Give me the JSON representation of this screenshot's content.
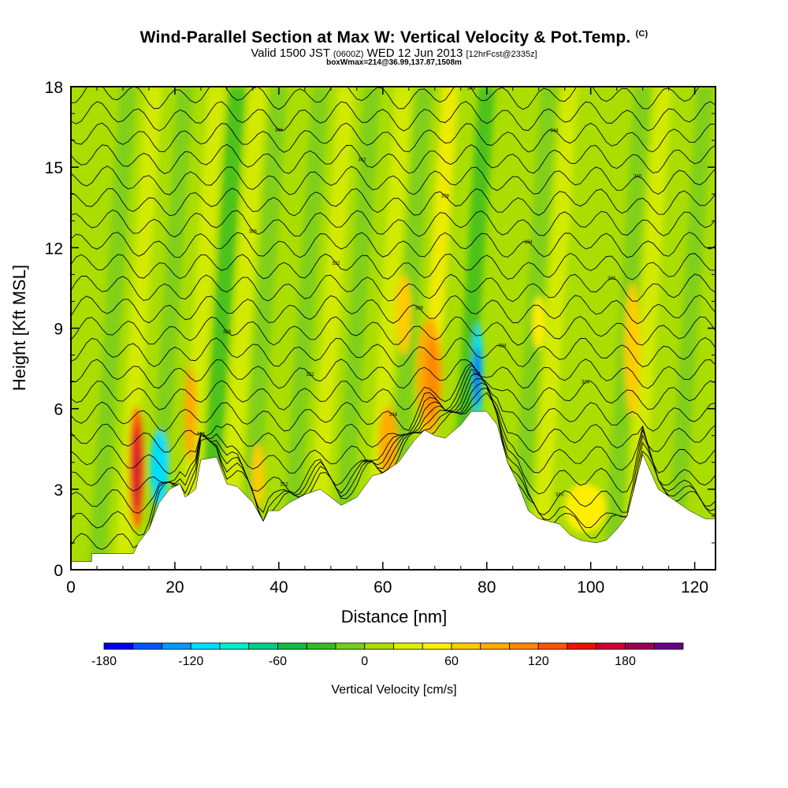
{
  "title": {
    "main": "Wind-Parallel Section at Max W: Vertical Velocity & Pot.Temp.",
    "copyright": "(C)",
    "valid_prefix": "Valid 1500 JST",
    "valid_utc": "(0600Z)",
    "valid_date": "WED 12 Jun 2013",
    "forecast": "[12hrFcst@2335z]",
    "box_info": "boxWmax=214@36.99,137.87,1508m"
  },
  "chart_data": {
    "type": "heatmap",
    "xlabel": "Distance [nm]",
    "ylabel": "Height [Kft MSL]",
    "xlim": [
      0,
      124
    ],
    "ylim": [
      0,
      18
    ],
    "x_ticks": [
      0,
      20,
      40,
      60,
      80,
      100,
      120
    ],
    "y_ticks": [
      0,
      3,
      6,
      9,
      12,
      15,
      18
    ],
    "colorbar": {
      "title": "Vertical Velocity [cm/s]",
      "tick_labels": [
        "-180",
        "-120",
        "-60",
        "0",
        "60",
        "120",
        "180"
      ],
      "tick_values": [
        -180,
        -120,
        -60,
        0,
        60,
        120,
        180
      ],
      "range": [
        -180,
        220
      ],
      "colors": [
        "#0000ee",
        "#0055ff",
        "#0099ff",
        "#00ddff",
        "#00eecc",
        "#00cc88",
        "#11bb44",
        "#33bb22",
        "#77cc22",
        "#aadd00",
        "#ddee00",
        "#ffee00",
        "#ffcc00",
        "#ffaa00",
        "#ff8800",
        "#ff5500",
        "#ee1100",
        "#cc0033",
        "#990055",
        "#660088"
      ]
    },
    "terrain_kft": [
      [
        0,
        0.3
      ],
      [
        4,
        0.3
      ],
      [
        4,
        0.6
      ],
      [
        12,
        0.6
      ],
      [
        13,
        1
      ],
      [
        15,
        1.5
      ],
      [
        17,
        2.5
      ],
      [
        19,
        3
      ],
      [
        21,
        3.2
      ],
      [
        22,
        2.7
      ],
      [
        24,
        3
      ],
      [
        25,
        4.1
      ],
      [
        28,
        4.2
      ],
      [
        30,
        3.2
      ],
      [
        32,
        3.1
      ],
      [
        35,
        2.5
      ],
      [
        37,
        1.8
      ],
      [
        38,
        2.2
      ],
      [
        40,
        2.2
      ],
      [
        42,
        2.5
      ],
      [
        45,
        2.8
      ],
      [
        48,
        3
      ],
      [
        52,
        2.4
      ],
      [
        55,
        2.7
      ],
      [
        58,
        3.5
      ],
      [
        60,
        3.6
      ],
      [
        63,
        4
      ],
      [
        66,
        4.8
      ],
      [
        68,
        5.2
      ],
      [
        70,
        5
      ],
      [
        72,
        4.9
      ],
      [
        75,
        5.4
      ],
      [
        77,
        5.9
      ],
      [
        80,
        5.9
      ],
      [
        82,
        5.4
      ],
      [
        84,
        4
      ],
      [
        86,
        3.2
      ],
      [
        88,
        2.2
      ],
      [
        90,
        1.9
      ],
      [
        94,
        1.7
      ],
      [
        96,
        1.3
      ],
      [
        98,
        1.1
      ],
      [
        101,
        1
      ],
      [
        103,
        1.1
      ],
      [
        105,
        1.5
      ],
      [
        107,
        2
      ],
      [
        110,
        4.3
      ],
      [
        113,
        3
      ],
      [
        116,
        2.6
      ],
      [
        119,
        2.2
      ],
      [
        121,
        2
      ],
      [
        122,
        1.9
      ],
      [
        124,
        1.9
      ]
    ],
    "isentrope_labels": [
      "306",
      "308",
      "310",
      "312",
      "314",
      "316",
      "318",
      "320",
      "322",
      "324",
      "326",
      "328",
      "330",
      "332",
      "334",
      "336",
      "338",
      "340",
      "342",
      "344",
      "346",
      "348"
    ],
    "max_w_cm_s": 214,
    "grid": false
  }
}
